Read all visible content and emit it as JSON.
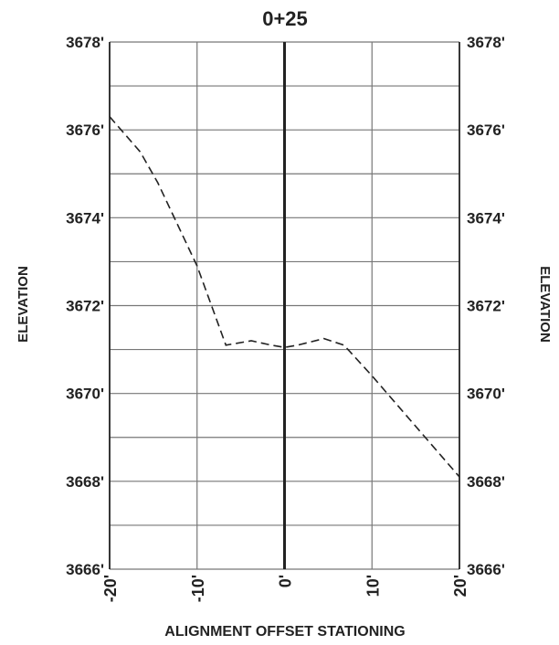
{
  "chart_data": {
    "type": "line",
    "title": "0+25",
    "xlabel": "ALIGNMENT OFFSET STATIONING",
    "ylabel_left": "ELEVATION",
    "ylabel_right": "ELEVATION",
    "xlim": [
      -20,
      20
    ],
    "ylim": [
      3666,
      3678
    ],
    "x_ticks": [
      "-20'",
      "-10'",
      "0'",
      "10'",
      "20'"
    ],
    "x_tick_values": [
      -20,
      -10,
      0,
      10,
      20
    ],
    "y_ticks": [
      "3666'",
      "3668'",
      "3670'",
      "3672'",
      "3674'",
      "3676'",
      "3678'"
    ],
    "y_tick_values": [
      3666,
      3668,
      3670,
      3672,
      3674,
      3676,
      3678
    ],
    "grid": true,
    "centerline_x": 0,
    "series": [
      {
        "line_style": "dashed",
        "color": "#222222",
        "points": [
          {
            "x": -20,
            "y": 3676.3
          },
          {
            "x": -16.5,
            "y": 3675.5
          },
          {
            "x": -14.5,
            "y": 3674.8
          },
          {
            "x": -10,
            "y": 3672.9
          },
          {
            "x": -6.7,
            "y": 3671.1
          },
          {
            "x": -3.8,
            "y": 3671.2
          },
          {
            "x": -1.5,
            "y": 3671.1
          },
          {
            "x": 0,
            "y": 3671.05
          },
          {
            "x": 1.5,
            "y": 3671.1
          },
          {
            "x": 4.5,
            "y": 3671.25
          },
          {
            "x": 6.8,
            "y": 3671.1
          },
          {
            "x": 10,
            "y": 3670.4
          },
          {
            "x": 20,
            "y": 3668.1
          }
        ]
      }
    ]
  }
}
